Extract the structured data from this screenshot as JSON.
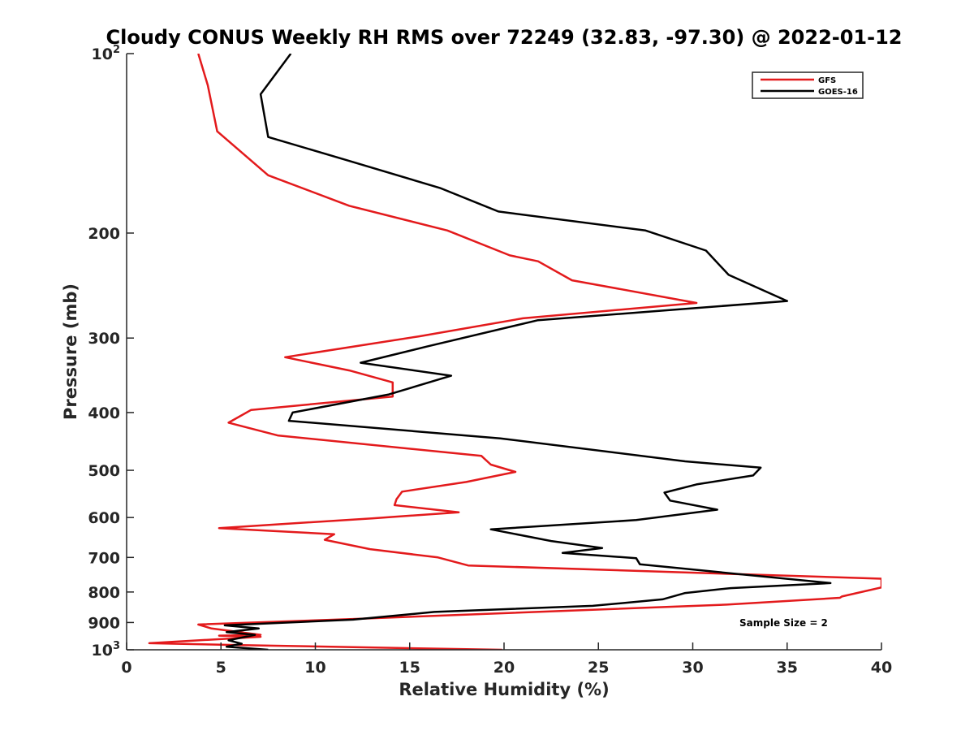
{
  "chart_data": {
    "type": "line",
    "title": "Cloudy CONUS Weekly RH RMS over 72249 (32.83, -97.30) @ 2022-01-12",
    "xlabel": "Relative Humidity (%)",
    "ylabel": "Pressure (mb)",
    "xlim": [
      0,
      40
    ],
    "ylim": [
      1000,
      100
    ],
    "yscale": "log",
    "y_reversed": true,
    "grid": false,
    "legend_position": "top-right",
    "x_ticks": [
      0,
      5,
      10,
      15,
      20,
      25,
      30,
      35,
      40
    ],
    "y_ticks": [
      {
        "value": 100,
        "base": "10",
        "exp": "2"
      },
      {
        "value": 200,
        "label": "200"
      },
      {
        "value": 300,
        "label": "300"
      },
      {
        "value": 400,
        "label": "400"
      },
      {
        "value": 500,
        "label": "500"
      },
      {
        "value": 600,
        "label": "600"
      },
      {
        "value": 700,
        "label": "700"
      },
      {
        "value": 800,
        "label": "800"
      },
      {
        "value": 900,
        "label": "900"
      },
      {
        "value": 1000,
        "base": "10",
        "exp": "3"
      }
    ],
    "annotation": "Sample Size = 2",
    "series": [
      {
        "name": "GFS",
        "color": "#e31a1c",
        "x": [
          3.8,
          4.3,
          4.8,
          7.5,
          11.8,
          17.0,
          20.3,
          21.8,
          23.6,
          30.2,
          21.0,
          15.5,
          8.4,
          11.8,
          14.1,
          14.1,
          6.6,
          5.4,
          8.0,
          18.8,
          19.3,
          20.6,
          18.0,
          14.6,
          14.3,
          14.2,
          17.6,
          13.0,
          4.9,
          11.0,
          10.5,
          12.9,
          16.5,
          18.1,
          40.0,
          40.0,
          37.9,
          37.8,
          31.8,
          12.0,
          3.8,
          4.5,
          7.1,
          4.9,
          7.1,
          1.2,
          6.0,
          12.0,
          19.9
        ],
        "y": [
          100,
          113,
          135,
          160,
          180,
          198,
          218,
          223,
          240,
          262,
          278,
          298,
          323,
          340,
          356,
          376,
          396,
          416,
          437,
          473,
          489,
          503,
          523,
          543,
          559,
          572,
          588,
          602,
          625,
          640,
          654,
          678,
          700,
          722,
          760,
          786,
          814,
          818,
          840,
          888,
          907,
          921,
          944,
          947,
          951,
          975,
          982,
          990,
          1000
        ]
      },
      {
        "name": "GOES-16",
        "color": "#000000",
        "x": [
          8.7,
          7.1,
          7.5,
          11.7,
          16.6,
          19.7,
          27.5,
          30.7,
          31.9,
          35.0,
          21.8,
          15.9,
          12.4,
          17.2,
          13.9,
          8.8,
          8.6,
          19.8,
          29.6,
          33.6,
          33.2,
          30.2,
          28.5,
          28.8,
          31.3,
          27.0,
          19.3,
          22.5,
          25.2,
          23.1,
          27.0,
          27.2,
          37.3,
          32.0,
          29.6,
          28.4,
          24.7,
          16.3,
          12.0,
          5.2,
          7.0,
          5.3,
          6.8,
          5.4,
          6.1,
          5.3,
          7.5
        ],
        "y": [
          100,
          117,
          138,
          151,
          168,
          184,
          198,
          214,
          235,
          260,
          280,
          310,
          330,
          347,
          373,
          400,
          413,
          442,
          483,
          495,
          510,
          528,
          545,
          562,
          582,
          606,
          628,
          657,
          675,
          688,
          702,
          719,
          773,
          788,
          803,
          823,
          844,
          864,
          890,
          910,
          921,
          934,
          944,
          964,
          977,
          988,
          1000
        ]
      }
    ]
  }
}
